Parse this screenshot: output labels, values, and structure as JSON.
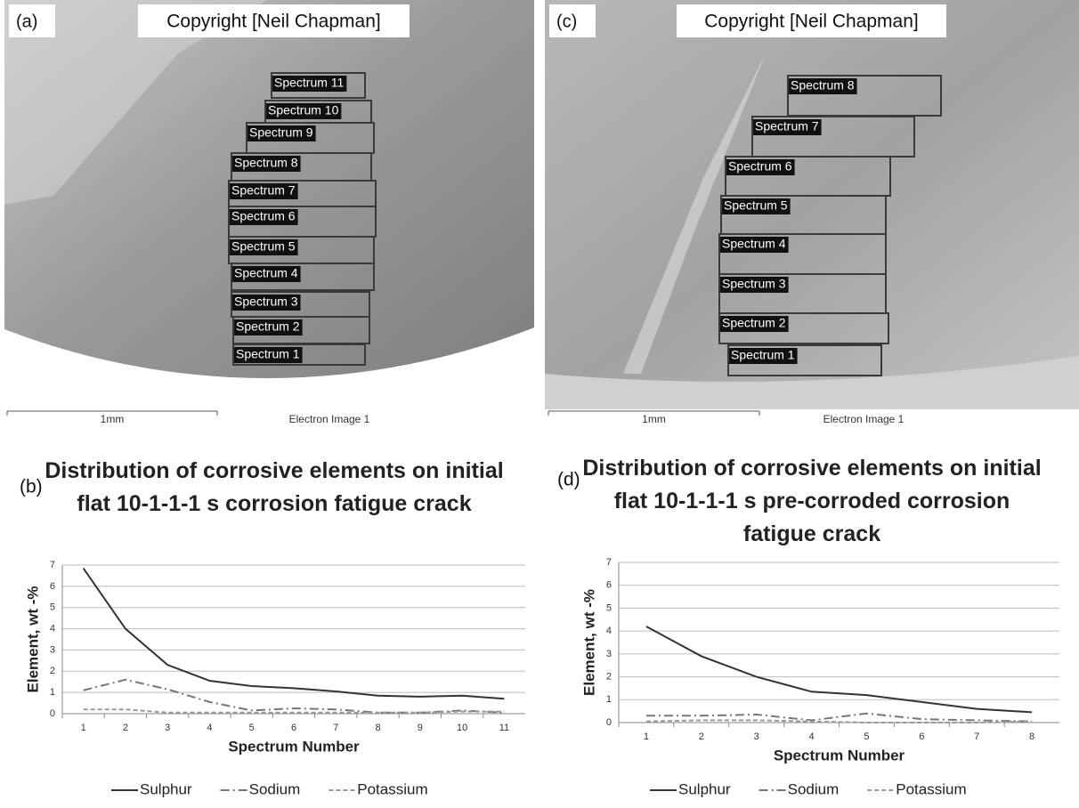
{
  "images": [
    {
      "panel_label": "(a)",
      "copyright": "Copyright [Neil Chapman]",
      "spectra": [
        "Spectrum 1",
        "Spectrum 2",
        "Spectrum 3",
        "Spectrum 4",
        "Spectrum 5",
        "Spectrum 6",
        "Spectrum 7",
        "Spectrum 8",
        "Spectrum 9",
        "Spectrum 10",
        "Spectrum 11"
      ],
      "scale": "1mm",
      "caption": "Electron Image 1"
    },
    {
      "panel_label": "(c)",
      "copyright": "Copyright [Neil Chapman]",
      "spectra": [
        "Spectrum 1",
        "Spectrum 2",
        "Spectrum 3",
        "Spectrum 4",
        "Spectrum 5",
        "Spectrum 6",
        "Spectrum 7",
        "Spectrum 8"
      ],
      "scale": "1mm",
      "caption": "Electron Image 1"
    }
  ],
  "chart_data": [
    {
      "type": "line",
      "panel_label": "(b)",
      "title": "Distribution of corrosive elements on initial flat 10-1-1-1 s corrosion fatigue crack",
      "x_label": "Spectrum Number",
      "y_label": "Element, wt -%",
      "categories": [
        "1",
        "2",
        "3",
        "4",
        "5",
        "6",
        "7",
        "8",
        "9",
        "10",
        "11"
      ],
      "ylim": [
        0,
        7
      ],
      "yticks": [
        0,
        1,
        2,
        3,
        4,
        5,
        6,
        7
      ],
      "grid": true,
      "legend": "bottom",
      "series": [
        {
          "name": "Sulphur",
          "color": "#333333",
          "dash": "solid",
          "values": [
            6.85,
            4.0,
            2.3,
            1.55,
            1.3,
            1.2,
            1.05,
            0.85,
            0.8,
            0.85,
            0.7
          ]
        },
        {
          "name": "Sodium",
          "color": "#777777",
          "dash": "dashdot",
          "values": [
            1.1,
            1.6,
            1.15,
            0.55,
            0.15,
            0.25,
            0.2,
            0.05,
            0.05,
            0.15,
            0.05
          ]
        },
        {
          "name": "Potassium",
          "color": "#999999",
          "dash": "dash",
          "values": [
            0.2,
            0.2,
            0.05,
            0.05,
            0.05,
            0.05,
            0.05,
            0.05,
            0.05,
            0.1,
            0.1
          ]
        }
      ]
    },
    {
      "type": "line",
      "panel_label": "(d)",
      "title": "Distribution of corrosive elements on initial flat 10-1-1-1 s pre-corroded corrosion fatigue crack",
      "x_label": "Spectrum Number",
      "y_label": "Element, wt -%",
      "categories": [
        "1",
        "2",
        "3",
        "4",
        "5",
        "6",
        "7",
        "8"
      ],
      "ylim": [
        0,
        7
      ],
      "yticks": [
        0,
        1,
        2,
        3,
        4,
        5,
        6,
        7
      ],
      "grid": true,
      "legend": "bottom",
      "series": [
        {
          "name": "Sulphur",
          "color": "#333333",
          "dash": "solid",
          "values": [
            4.2,
            2.9,
            2.0,
            1.35,
            1.2,
            0.9,
            0.6,
            0.45
          ]
        },
        {
          "name": "Sodium",
          "color": "#777777",
          "dash": "dashdot",
          "values": [
            0.3,
            0.3,
            0.35,
            0.1,
            0.4,
            0.15,
            0.1,
            0.05
          ]
        },
        {
          "name": "Potassium",
          "color": "#999999",
          "dash": "dash",
          "values": [
            0.05,
            0.1,
            0.1,
            0.05,
            0.0,
            0.0,
            0.0,
            0.05
          ]
        }
      ]
    }
  ]
}
